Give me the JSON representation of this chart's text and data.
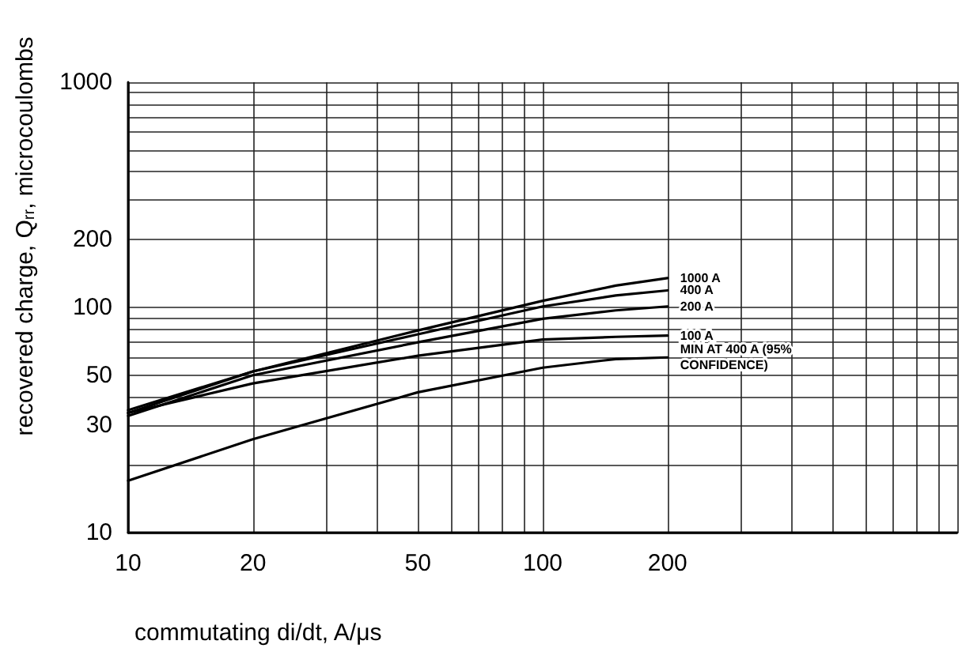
{
  "chart_data": {
    "type": "line",
    "xlabel": "commutating di/dt, A/μs",
    "ylabel": "recovered charge, Q$_{rr}$, microcoulombs",
    "log": "xy",
    "grid": true,
    "marker": "none",
    "line_style": "solid",
    "legend": false,
    "x": [
      10,
      20,
      50,
      100,
      150,
      200
    ],
    "series": [
      {
        "name": "1000 A",
        "color": "#000000",
        "values": [
          35,
          52,
          79,
          107,
          125,
          135
        ]
      },
      {
        "name": "400 A",
        "color": "#000000",
        "values": [
          34,
          52,
          76,
          101,
          113,
          119
        ]
      },
      {
        "name": "200 A",
        "color": "#000000",
        "values": [
          33,
          50,
          70,
          89,
          97,
          101
        ]
      },
      {
        "name": "100 A",
        "color": "#000000",
        "values": [
          34,
          46,
          61,
          72,
          74,
          75
        ]
      },
      {
        "name": "MIN AT 400 A (95% CONFIDENCE)",
        "color": "#000000",
        "values": [
          17,
          26,
          42,
          54,
          59,
          60
        ]
      }
    ],
    "xlim": [
      10,
      1000
    ],
    "xticks": [
      10,
      20,
      {
        "value": 30,
        "label": null
      },
      {
        "value": 40,
        "label": null
      },
      50,
      {
        "value": 60,
        "label": null
      },
      {
        "value": 70,
        "label": null
      },
      {
        "value": 80,
        "label": null
      },
      {
        "value": 90,
        "label": null
      },
      100,
      200,
      {
        "value": 300,
        "label": null
      },
      {
        "value": 400,
        "label": null
      },
      {
        "value": 500,
        "label": null
      },
      {
        "value": 600,
        "label": null
      },
      {
        "value": 700,
        "label": null
      },
      {
        "value": 800,
        "label": null
      },
      {
        "value": 900,
        "label": null
      },
      {
        "value": 1000,
        "label": null
      }
    ],
    "ylim": [
      10,
      1000
    ],
    "yticks": [
      10,
      {
        "value": 20,
        "label": null
      },
      30,
      {
        "value": 40,
        "label": null
      },
      50,
      {
        "value": 60,
        "label": null
      },
      {
        "value": 70,
        "label": null
      },
      {
        "value": 80,
        "label": null
      },
      {
        "value": 90,
        "label": null
      },
      100,
      200,
      {
        "value": 300,
        "label": null
      },
      {
        "value": 400,
        "label": null
      },
      {
        "value": 500,
        "label": null
      },
      {
        "value": 600,
        "label": null
      },
      {
        "value": 700,
        "label": null
      },
      {
        "value": 800,
        "label": null
      },
      {
        "value": 900,
        "label": null
      },
      1000
    ]
  }
}
